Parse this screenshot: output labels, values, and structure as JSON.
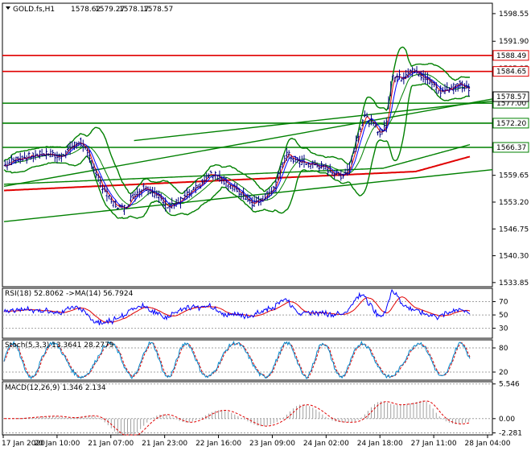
{
  "chart_data": {
    "type": "line",
    "symbol": "GOLD.fs,H1",
    "ohlc": {
      "open": "1578.62",
      "high": "1579.27",
      "low": "1578.17",
      "close": "1578.57"
    },
    "price_ticks": [
      "1598.55",
      "1591.90",
      "1585.35",
      "1578.70",
      "1572.20",
      "1565.75",
      "1559.65",
      "1553.20",
      "1546.75",
      "1540.30",
      "1533.85"
    ],
    "horizontal_levels": [
      {
        "value": 1588.49,
        "label": "1588.49",
        "color": "#e00000"
      },
      {
        "value": 1584.65,
        "label": "1584.65",
        "color": "#e00000"
      },
      {
        "value": 1577.0,
        "label": "1577.00",
        "color": "#008000"
      },
      {
        "value": 1572.2,
        "label": "1572.20",
        "color": "#008000"
      },
      {
        "value": 1566.37,
        "label": "1566.37",
        "color": "#008000"
      }
    ],
    "current_price_label": "1578.57",
    "price_anchors": [
      [
        0,
        1562
      ],
      [
        10,
        1563.5
      ],
      [
        20,
        1564
      ],
      [
        30,
        1564.5
      ],
      [
        40,
        1565
      ],
      [
        50,
        1564
      ],
      [
        60,
        1566
      ],
      [
        70,
        1568
      ],
      [
        80,
        1563
      ],
      [
        90,
        1557
      ],
      [
        100,
        1553
      ],
      [
        110,
        1551.5
      ],
      [
        120,
        1555
      ],
      [
        130,
        1557
      ],
      [
        140,
        1555
      ],
      [
        150,
        1552.5
      ],
      [
        160,
        1553
      ],
      [
        170,
        1555
      ],
      [
        180,
        1557
      ],
      [
        190,
        1560
      ],
      [
        200,
        1559
      ],
      [
        210,
        1557
      ],
      [
        220,
        1555
      ],
      [
        230,
        1553
      ],
      [
        240,
        1554.5
      ],
      [
        250,
        1557
      ],
      [
        255,
        1561
      ],
      [
        260,
        1565
      ],
      [
        270,
        1563
      ],
      [
        280,
        1562.5
      ],
      [
        290,
        1562
      ],
      [
        300,
        1561
      ],
      [
        310,
        1559.5
      ],
      [
        318,
        1561
      ],
      [
        325,
        1568
      ],
      [
        332,
        1574
      ],
      [
        340,
        1572
      ],
      [
        346,
        1570
      ],
      [
        352,
        1571
      ],
      [
        358,
        1584
      ],
      [
        366,
        1583
      ],
      [
        375,
        1585
      ],
      [
        385,
        1583.5
      ],
      [
        395,
        1582
      ],
      [
        400,
        1580
      ],
      [
        410,
        1580.5
      ],
      [
        420,
        1581.5
      ],
      [
        430,
        1580
      ]
    ],
    "rsi": {
      "label": "RSI(18) 52.8062  ->MA(14) 56.7924",
      "levels": [
        "70",
        "50",
        "30"
      ],
      "ylim": [
        15,
        90
      ]
    },
    "stoch": {
      "label": "Stoch(5,3,3) 13.3641 28.2779",
      "levels": [
        "80",
        "20"
      ],
      "ylim": [
        0,
        100
      ]
    },
    "macd": {
      "label": "MACD(12,26,9) 1.346 2.134",
      "levels": [
        "5.546",
        "0.00",
        "-2.281"
      ],
      "ylim": [
        -2.6,
        5.9
      ]
    },
    "x_ticks": [
      "17 Jan 2020",
      "20 Jan 10:00",
      "21 Jan 07:00",
      "21 Jan 23:00",
      "22 Jan 16:00",
      "23 Jan 09:00",
      "24 Jan 02:00",
      "24 Jan 18:00",
      "27 Jan 11:00",
      "28 Jan 04:00"
    ],
    "colors": {
      "price": "#000080",
      "bands": "#008000",
      "ma_red": "#e00000",
      "ma_blue": "#0000ff",
      "signal": "#e00000",
      "hist": "#a0a0a0"
    }
  }
}
